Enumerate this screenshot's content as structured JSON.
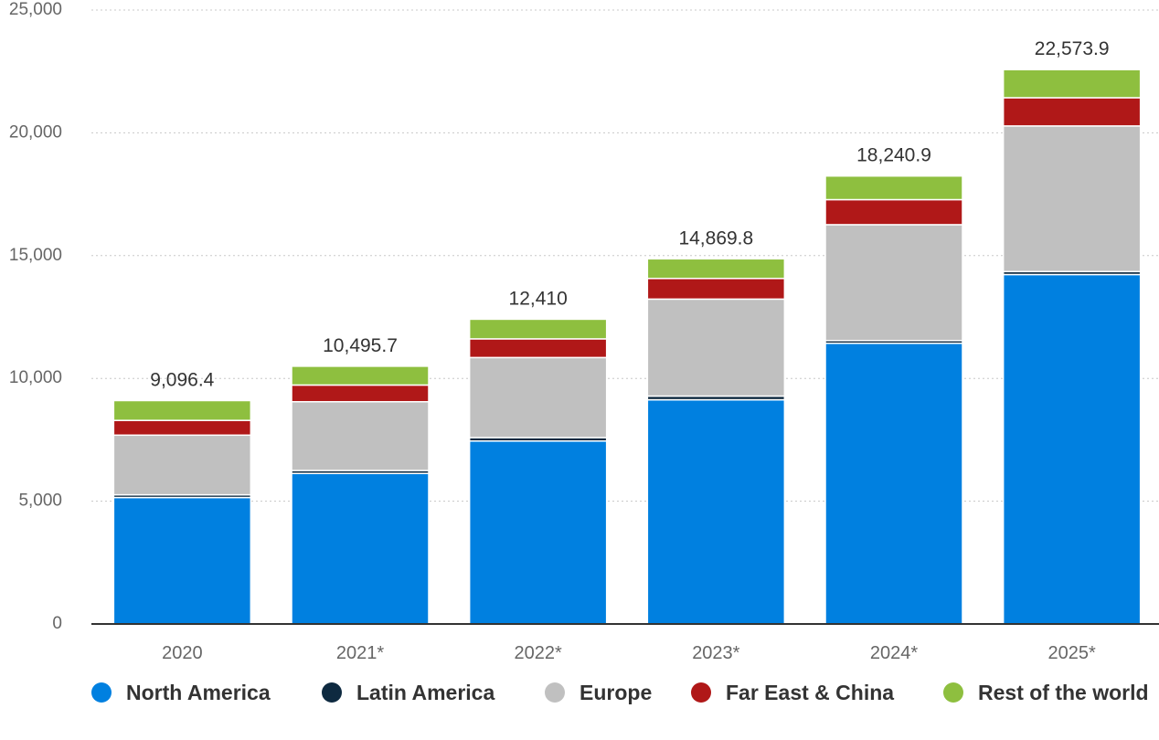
{
  "chart_data": {
    "type": "bar",
    "stacked": true,
    "categories": [
      "2020",
      "2021*",
      "2022*",
      "2023*",
      "2024*",
      "2025*"
    ],
    "series": [
      {
        "name": "North America",
        "color": "#0080e0",
        "values": [
          5150,
          6130,
          7450,
          9130,
          11430,
          14230
        ]
      },
      {
        "name": "Latin America",
        "color": "#0e2a40",
        "values": [
          110,
          120,
          140,
          150,
          110,
          120
        ]
      },
      {
        "name": "Europe",
        "color": "#c0c0c0",
        "values": [
          2430,
          2800,
          3260,
          3950,
          4720,
          5930
        ]
      },
      {
        "name": "Far East & China",
        "color": "#b01818",
        "values": [
          600,
          680,
          760,
          840,
          1020,
          1150
        ]
      },
      {
        "name": "Rest of the world",
        "color": "#8ebf3f",
        "values": [
          806.4,
          765.7,
          800,
          799.8,
          960.9,
          1143.9
        ]
      }
    ],
    "totals": [
      "9,096.4",
      "10,495.7",
      "12,410",
      "14,869.8",
      "18,240.9",
      "22,573.9"
    ],
    "ylim": [
      0,
      25000
    ],
    "yticks": [
      0,
      5000,
      10000,
      15000,
      20000,
      25000
    ],
    "ytick_labels": [
      "0",
      "5,000",
      "10,000",
      "15,000",
      "20,000",
      "25,000"
    ],
    "grid": true,
    "legend_position": "bottom"
  }
}
